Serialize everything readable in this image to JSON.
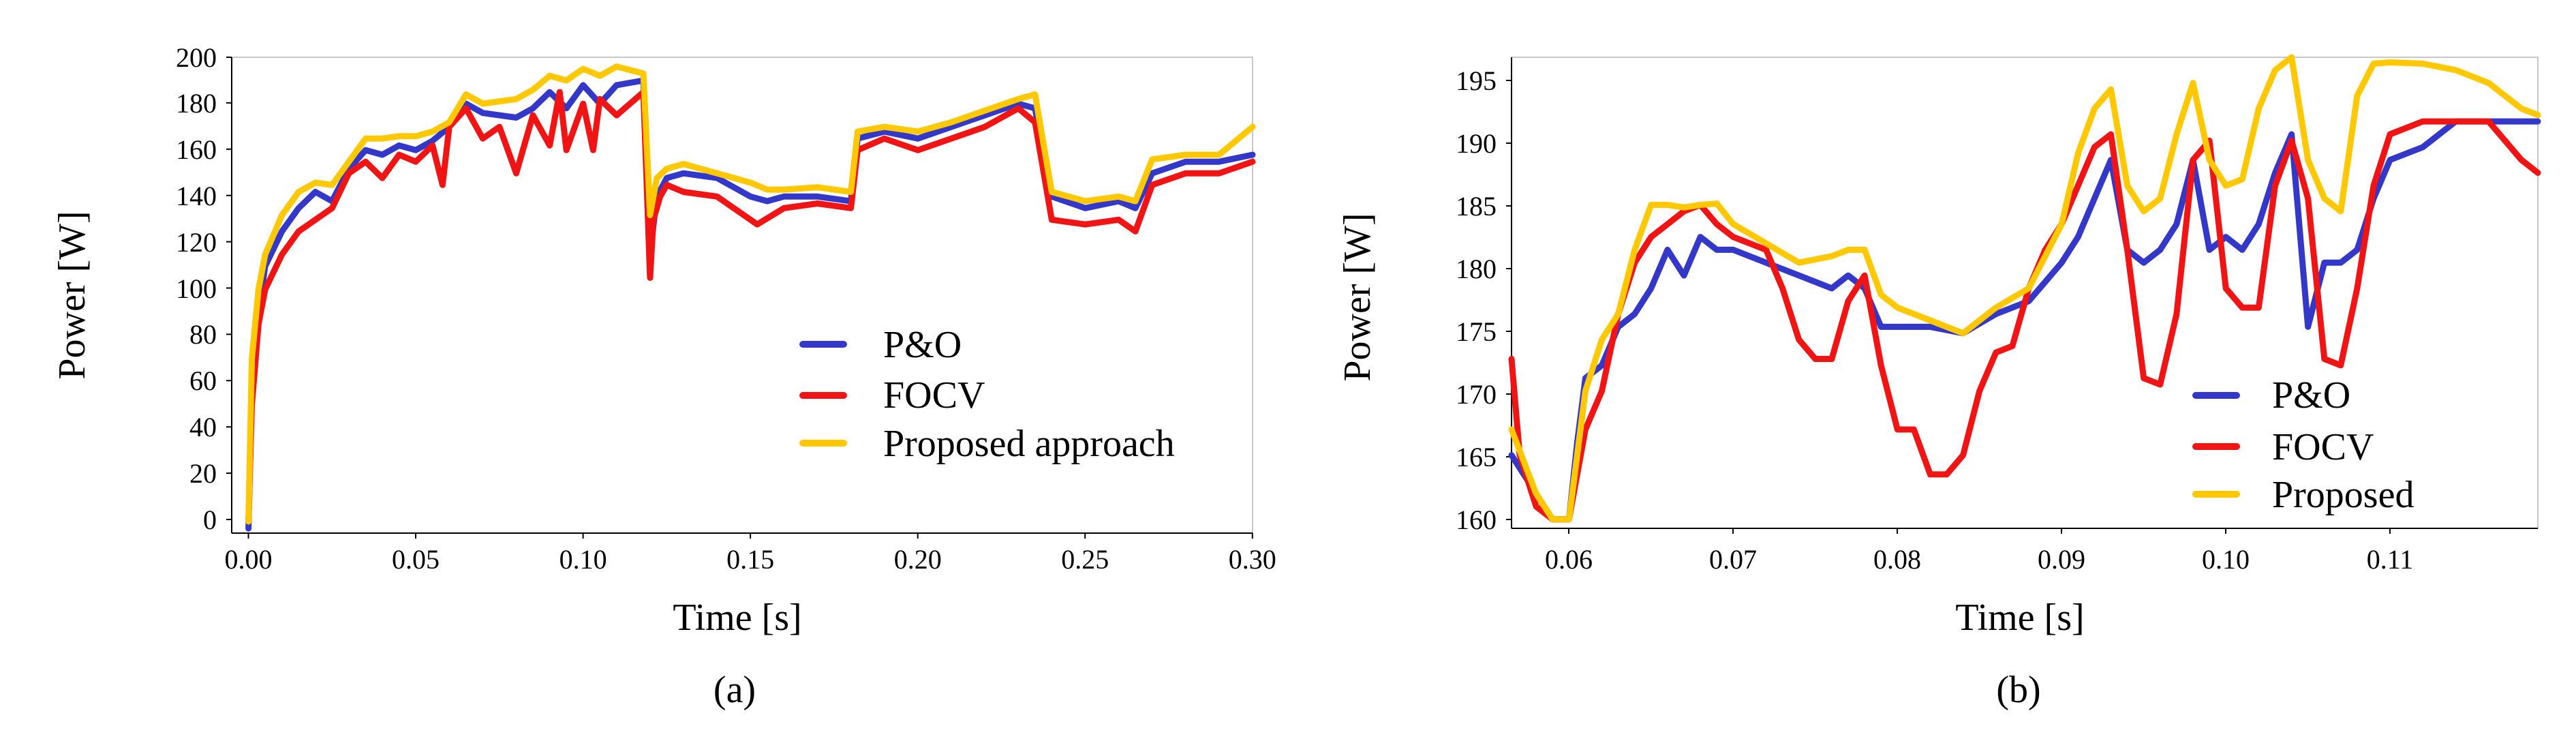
{
  "figure": {
    "caption_a": "(a)",
    "caption_b": "(b)"
  },
  "colors": {
    "po": "#3338c9",
    "focv": "#f01414",
    "proposed": "#ffc800"
  },
  "chart_data": [
    {
      "type": "line",
      "title": "",
      "xlabel": "Time [s]",
      "ylabel": "Power [W]",
      "xlim": [
        -0.005,
        0.3
      ],
      "ylim": [
        -5,
        200
      ],
      "xticks": [
        0.0,
        0.05,
        0.1,
        0.15,
        0.2,
        0.25,
        0.3
      ],
      "xtick_labels": [
        "0.00",
        "0.05",
        "0.10",
        "0.15",
        "0.20",
        "0.25",
        "0.30"
      ],
      "yticks": [
        0,
        20,
        40,
        60,
        80,
        100,
        120,
        140,
        160,
        180,
        200
      ],
      "ytick_labels": [
        "0",
        "20",
        "40",
        "60",
        "80",
        "100",
        "120",
        "140",
        "160",
        "180",
        "200"
      ],
      "legend": [
        "P&O",
        "FOCV",
        "Proposed approach"
      ],
      "legend_position": "bottom-right",
      "series": [
        {
          "name": "P&O",
          "color": "#3338c9",
          "x": [
            0.0,
            0.001,
            0.003,
            0.005,
            0.01,
            0.015,
            0.02,
            0.025,
            0.03,
            0.035,
            0.04,
            0.045,
            0.05,
            0.055,
            0.06,
            0.065,
            0.07,
            0.08,
            0.085,
            0.09,
            0.095,
            0.1,
            0.105,
            0.11,
            0.118,
            0.12,
            0.122,
            0.125,
            0.13,
            0.14,
            0.15,
            0.155,
            0.16,
            0.17,
            0.18,
            0.182,
            0.19,
            0.2,
            0.21,
            0.22,
            0.23,
            0.235,
            0.24,
            0.25,
            0.26,
            0.265,
            0.27,
            0.28,
            0.29,
            0.3
          ],
          "y": [
            -3,
            60,
            90,
            110,
            125,
            135,
            142,
            138,
            152,
            160,
            158,
            162,
            160,
            164,
            170,
            180,
            176,
            174,
            178,
            185,
            178,
            188,
            180,
            188,
            190,
            115,
            140,
            148,
            150,
            148,
            140,
            138,
            140,
            140,
            138,
            165,
            168,
            165,
            170,
            175,
            180,
            178,
            140,
            135,
            138,
            135,
            150,
            155,
            155,
            158
          ]
        },
        {
          "name": "FOCV",
          "color": "#f01414",
          "x": [
            0.0,
            0.001,
            0.003,
            0.005,
            0.01,
            0.015,
            0.02,
            0.025,
            0.03,
            0.035,
            0.04,
            0.045,
            0.05,
            0.055,
            0.058,
            0.06,
            0.065,
            0.07,
            0.075,
            0.08,
            0.085,
            0.09,
            0.093,
            0.095,
            0.1,
            0.103,
            0.105,
            0.11,
            0.118,
            0.12,
            0.121,
            0.123,
            0.125,
            0.13,
            0.14,
            0.15,
            0.152,
            0.16,
            0.17,
            0.18,
            0.182,
            0.19,
            0.2,
            0.21,
            0.22,
            0.23,
            0.235,
            0.24,
            0.25,
            0.26,
            0.265,
            0.27,
            0.28,
            0.29,
            0.3
          ],
          "y": [
            0,
            50,
            85,
            100,
            115,
            125,
            130,
            135,
            150,
            155,
            148,
            158,
            155,
            162,
            145,
            170,
            178,
            165,
            170,
            150,
            175,
            162,
            185,
            160,
            180,
            160,
            182,
            175,
            185,
            105,
            130,
            140,
            145,
            142,
            140,
            130,
            128,
            135,
            137,
            135,
            160,
            165,
            160,
            165,
            170,
            178,
            172,
            130,
            128,
            130,
            125,
            145,
            150,
            150,
            155
          ]
        },
        {
          "name": "Proposed approach",
          "color": "#ffc800",
          "x": [
            0.0,
            0.001,
            0.003,
            0.005,
            0.01,
            0.015,
            0.02,
            0.025,
            0.03,
            0.035,
            0.04,
            0.045,
            0.05,
            0.055,
            0.06,
            0.065,
            0.07,
            0.08,
            0.085,
            0.09,
            0.095,
            0.1,
            0.105,
            0.11,
            0.118,
            0.12,
            0.122,
            0.125,
            0.13,
            0.14,
            0.15,
            0.155,
            0.16,
            0.17,
            0.18,
            0.182,
            0.19,
            0.2,
            0.21,
            0.22,
            0.23,
            0.235,
            0.24,
            0.25,
            0.26,
            0.265,
            0.27,
            0.28,
            0.29,
            0.3
          ],
          "y": [
            0,
            70,
            100,
            115,
            132,
            142,
            146,
            145,
            155,
            165,
            165,
            166,
            166,
            168,
            172,
            184,
            180,
            182,
            186,
            192,
            190,
            195,
            192,
            196,
            193,
            132,
            148,
            152,
            154,
            150,
            146,
            143,
            143,
            144,
            142,
            168,
            170,
            168,
            172,
            177,
            182,
            184,
            142,
            138,
            140,
            138,
            156,
            158,
            158,
            170
          ]
        }
      ]
    },
    {
      "type": "line",
      "title": "",
      "xlabel": "Time [s]",
      "ylabel": "Power [W]",
      "xlim": [
        0.0565,
        0.119
      ],
      "ylim": [
        159.3,
        196
      ],
      "xticks": [
        0.06,
        0.07,
        0.08,
        0.09,
        0.1,
        0.11
      ],
      "xtick_labels": [
        "0.06",
        "0.07",
        "0.08",
        "0.09",
        "0.10",
        "0.11"
      ],
      "yticks": [
        160,
        165,
        170,
        175,
        180,
        185,
        190,
        195
      ],
      "ytick_labels": [
        "160",
        "165",
        "170",
        "175",
        "180",
        "185",
        "190",
        "195"
      ],
      "legend": [
        "P&O",
        "FOCV",
        "Proposed"
      ],
      "legend_position": "bottom-right",
      "series": [
        {
          "name": "P&O",
          "color": "#3338c9",
          "x": [
            0.0565,
            0.058,
            0.059,
            0.06,
            0.0605,
            0.061,
            0.062,
            0.063,
            0.064,
            0.065,
            0.066,
            0.067,
            0.068,
            0.069,
            0.07,
            0.072,
            0.074,
            0.076,
            0.077,
            0.078,
            0.079,
            0.08,
            0.082,
            0.084,
            0.086,
            0.088,
            0.09,
            0.091,
            0.092,
            0.093,
            0.094,
            0.095,
            0.096,
            0.097,
            0.098,
            0.099,
            0.1,
            0.101,
            0.102,
            0.103,
            0.104,
            0.105,
            0.106,
            0.107,
            0.108,
            0.109,
            0.11,
            0.112,
            0.114,
            0.116,
            0.118,
            0.119
          ],
          "y": [
            165,
            162,
            160,
            160,
            166,
            171,
            172,
            175,
            176,
            178,
            181,
            179,
            182,
            181,
            181,
            180,
            179,
            178,
            179,
            178,
            175,
            175,
            175,
            174.5,
            176,
            177,
            180,
            182,
            185,
            188,
            181,
            180,
            181,
            183,
            188,
            181,
            182,
            181,
            183,
            187,
            190,
            175,
            180,
            180,
            181,
            185,
            188,
            189,
            191,
            191,
            191,
            191
          ]
        },
        {
          "name": "FOCV",
          "color": "#f01414",
          "x": [
            0.0565,
            0.057,
            0.058,
            0.059,
            0.06,
            0.061,
            0.062,
            0.063,
            0.064,
            0.065,
            0.066,
            0.067,
            0.068,
            0.069,
            0.07,
            0.072,
            0.073,
            0.074,
            0.075,
            0.076,
            0.077,
            0.078,
            0.079,
            0.08,
            0.081,
            0.082,
            0.083,
            0.084,
            0.085,
            0.086,
            0.087,
            0.088,
            0.089,
            0.09,
            0.091,
            0.092,
            0.093,
            0.094,
            0.095,
            0.096,
            0.097,
            0.098,
            0.099,
            0.1,
            0.101,
            0.102,
            0.103,
            0.104,
            0.105,
            0.106,
            0.107,
            0.108,
            0.109,
            0.11,
            0.112,
            0.114,
            0.116,
            0.118,
            0.119
          ],
          "y": [
            172.5,
            165,
            161,
            160,
            160,
            167,
            170,
            176,
            180,
            182,
            183,
            184,
            184.5,
            183,
            182,
            181,
            178,
            174,
            172.5,
            172.5,
            177,
            179,
            172,
            167,
            167,
            163.5,
            163.5,
            165,
            170,
            173,
            173.5,
            178,
            181,
            183,
            186,
            189,
            190,
            181,
            171,
            170.5,
            176,
            188,
            189.5,
            178,
            176.5,
            176.5,
            186,
            189.5,
            185,
            172.5,
            172,
            178,
            186,
            190,
            191,
            191,
            191,
            188,
            187
          ]
        },
        {
          "name": "Proposed",
          "color": "#ffc800",
          "x": [
            0.0565,
            0.058,
            0.059,
            0.06,
            0.061,
            0.062,
            0.063,
            0.064,
            0.065,
            0.066,
            0.067,
            0.068,
            0.069,
            0.07,
            0.072,
            0.074,
            0.076,
            0.077,
            0.078,
            0.079,
            0.08,
            0.082,
            0.084,
            0.086,
            0.088,
            0.09,
            0.091,
            0.092,
            0.093,
            0.094,
            0.095,
            0.096,
            0.097,
            0.098,
            0.099,
            0.1,
            0.101,
            0.102,
            0.103,
            0.104,
            0.105,
            0.106,
            0.107,
            0.108,
            0.109,
            0.11,
            0.112,
            0.114,
            0.116,
            0.118,
            0.119
          ],
          "y": [
            167,
            162,
            160,
            160,
            170,
            174,
            176,
            181,
            184.5,
            184.5,
            184.3,
            184.5,
            184.6,
            183,
            181.5,
            180,
            180.5,
            181,
            181,
            177.5,
            176.5,
            175.5,
            174.5,
            176.5,
            178,
            183,
            188.5,
            192,
            193.5,
            186,
            184,
            185,
            190,
            194,
            188,
            186,
            186.5,
            192,
            195,
            196,
            188,
            185,
            184,
            193,
            195.5,
            195.6,
            195.5,
            195,
            194,
            192,
            191.5
          ]
        }
      ]
    }
  ]
}
